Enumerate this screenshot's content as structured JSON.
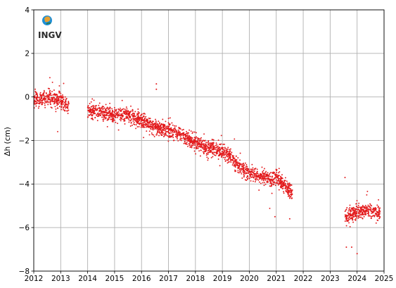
{
  "chart_data": {
    "type": "scatter",
    "title": "",
    "xlabel": "",
    "ylabel": "Δh (cm)",
    "xlim": [
      2012,
      2025
    ],
    "ylim": [
      -8,
      4
    ],
    "x_ticks": [
      "2012",
      "2013",
      "2014",
      "2015",
      "2016",
      "2017",
      "2018",
      "2019",
      "2020",
      "2021",
      "2022",
      "2023",
      "2024",
      "2025"
    ],
    "y_ticks": [
      "−8",
      "−6",
      "−4",
      "−2",
      "0",
      "2",
      "4"
    ],
    "grid": true,
    "marker_color": "#e31a1c",
    "logo_text": "INGV",
    "segments": [
      {
        "x_start": 2012.0,
        "x_end": 2013.3,
        "trend": [
          [
            2012.0,
            -0.15
          ],
          [
            2012.6,
            -0.05
          ],
          [
            2013.0,
            -0.15
          ],
          [
            2013.3,
            -0.4
          ]
        ]
      },
      {
        "x_start": 2014.0,
        "x_end": 2021.6,
        "trend": [
          [
            2014.0,
            -0.6
          ],
          [
            2015.0,
            -0.85
          ],
          [
            2015.5,
            -0.8
          ],
          [
            2016.0,
            -1.1
          ],
          [
            2016.5,
            -1.4
          ],
          [
            2017.0,
            -1.5
          ],
          [
            2017.5,
            -1.75
          ],
          [
            2018.0,
            -2.1
          ],
          [
            2018.5,
            -2.35
          ],
          [
            2019.0,
            -2.5
          ],
          [
            2019.5,
            -3.0
          ],
          [
            2020.0,
            -3.5
          ],
          [
            2020.5,
            -3.7
          ],
          [
            2021.0,
            -3.75
          ],
          [
            2021.3,
            -4.1
          ],
          [
            2021.6,
            -4.5
          ]
        ]
      },
      {
        "x_start": 2023.55,
        "x_end": 2024.85,
        "trend": [
          [
            2023.55,
            -5.5
          ],
          [
            2023.8,
            -5.4
          ],
          [
            2024.0,
            -5.3
          ],
          [
            2024.4,
            -5.2
          ],
          [
            2024.85,
            -5.3
          ]
        ]
      }
    ],
    "outliers": [
      {
        "x": 2016.55,
        "y": 0.6
      },
      {
        "x": 2016.55,
        "y": 0.35
      },
      {
        "x": 2020.95,
        "y": -5.5
      },
      {
        "x": 2021.5,
        "y": -5.6
      },
      {
        "x": 2023.55,
        "y": -3.7
      },
      {
        "x": 2023.6,
        "y": -6.9
      },
      {
        "x": 2023.8,
        "y": -6.9
      },
      {
        "x": 2024.0,
        "y": -7.2
      }
    ]
  }
}
